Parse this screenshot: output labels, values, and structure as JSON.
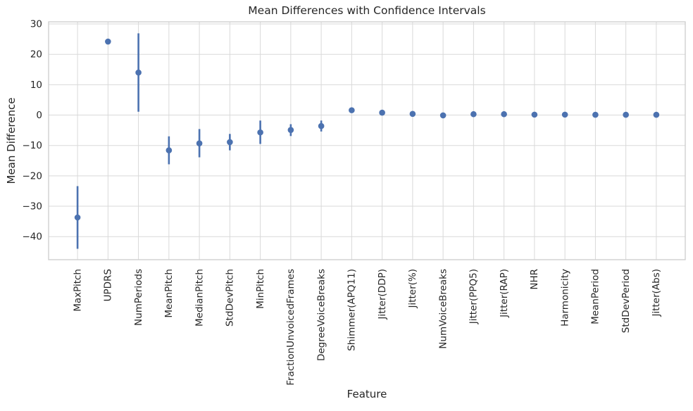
{
  "figure": {
    "title": "Mean Differences with Confidence Intervals",
    "xlabel": "Feature",
    "ylabel": "Mean Difference"
  },
  "style": {
    "accent": "#4C72B0",
    "grid_color": "#D9D9D9",
    "border_color": "#CCCCCC",
    "text_color": "#262626",
    "background": "#FFFFFF"
  },
  "chart_data": {
    "type": "scatter",
    "subtype": "errorbar",
    "title": "Mean Differences with Confidence Intervals",
    "xlabel": "Feature",
    "ylabel": "Mean Difference",
    "grid": true,
    "legend": false,
    "legend_position": "none",
    "marker": "circle",
    "marker_color": "#4C72B0",
    "errorbar_color": "#4C72B0",
    "ylim": [
      -47.6,
      30.7
    ],
    "yticks": [
      30,
      20,
      10,
      0,
      -10,
      -20,
      -30,
      -40
    ],
    "categories": [
      "MaxPitch",
      "UPDRS",
      "NumPeriods",
      "MeanPitch",
      "MedianPitch",
      "StdDevPitch",
      "MinPitch",
      "FractionUnvoicedFrames",
      "DegreeVoiceBreaks",
      "Shimmer(APQ11)",
      "Jitter(DDP)",
      "Jitter(%)",
      "NumVoiceBreaks",
      "Jitter(PPQ5)",
      "Jitter(RAP)",
      "NHR",
      "Harmonicity",
      "MeanPeriod",
      "StdDevPeriod",
      "Jitter(Abs)"
    ],
    "series": [
      {
        "name": "mean_difference",
        "values": [
          -33.7,
          24.2,
          14.0,
          -11.6,
          -9.3,
          -8.9,
          -5.7,
          -4.9,
          -3.6,
          1.6,
          0.8,
          0.4,
          -0.1,
          0.3,
          0.3,
          0.15,
          0.15,
          0.1,
          0.1,
          0.1
        ]
      },
      {
        "name": "ci_lower",
        "values": [
          -44.0,
          23.8,
          1.1,
          -16.2,
          -13.9,
          -11.6,
          -9.5,
          -6.9,
          -5.4,
          0.9,
          0.5,
          0.2,
          -0.5,
          0.1,
          0.1,
          0.0,
          0.0,
          0.05,
          0.05,
          0.05
        ]
      },
      {
        "name": "ci_upper",
        "values": [
          -23.4,
          24.6,
          26.9,
          -7.0,
          -4.6,
          -6.2,
          -1.8,
          -3.0,
          -1.8,
          2.3,
          1.1,
          0.6,
          0.3,
          0.5,
          0.5,
          0.3,
          0.3,
          0.15,
          0.15,
          0.15
        ]
      }
    ]
  }
}
